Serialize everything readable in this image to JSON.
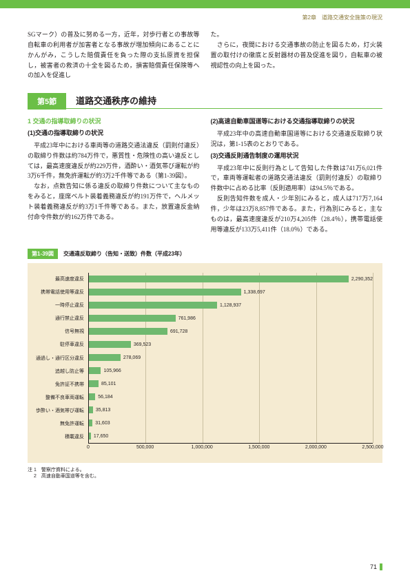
{
  "header": {
    "chapter": "第2章　道路交通安全施策の現況"
  },
  "intro": {
    "left": "SGマーク）の普及に努める一方，近年，対歩行者との事故等自転車の利用者が加害者となる事故が増加傾向にあることにかんがみ，こうした賠償責任を負った際の支払原資を担保し，被害者の救済の十全を図るため，損害賠償責任保険等への加入を促進し",
    "right": "た。\n　さらに，夜間における交通事故の防止を図るため，灯火装置の取付けの徹底と反射器材の普及促進を図り，自転車の被視認性の向上を図った。"
  },
  "section": {
    "badge": "第5節",
    "title": "道路交通秩序の維持"
  },
  "body": {
    "left_h1_green": "1 交通の指導取締りの状況",
    "left_h2a": "(1)交通の指導取締りの状況",
    "left_p1": "　平成23年中における車両等の道路交通法違反（罰則付違反）の取締り件数は約784万件で，悪質性・危険性の高い違反としては，最高速度違反が約229万件，酒酔い・酒気帯び運転が約3万6千件，無免許運転が約3万2千件等である（第1-39図）。\n　なお，点数告知に係る違反の取締り件数について主なものをみると，座席ベルト装着義務違反が約191万件で，ヘルメット装着義務違反が約3万1千件等である。また，放置違反金納付命令件数が約162万件である。",
    "right_h2b": "(2)高速自動車国道等における交通指導取締りの状況",
    "right_p1": "　平成23年中の高速自動車国道等における交通違反取締り状況は，第1-15表のとおりである。",
    "right_h2c": "(3)交通反則通告制度の運用状況",
    "right_p2": "　平成23年中に反則行為として告知した件数は741万6,021件で，車両等運転者の道路交通法違反（罰則付違反）の取締り件数中に占める比率（反則適用率）は94.5％である。\n　反則告知件数を成人・少年別にみると，成人は717万7,164件，少年は23万8,857件である。また，行為別にみると，主なものは，最高速度違反が210万4,205件（28.4％），携帯電話使用等違反が133万5,411件（18.0％）である。"
  },
  "chart": {
    "tab": "第1-39図",
    "title": "交通違反取締り（告知・送致）件数（平成23年）",
    "xmax": 2500000,
    "xticks": [
      0,
      500000,
      1000000,
      1500000,
      2000000,
      2500000
    ],
    "xtick_labels": [
      "0",
      "500,000",
      "1,000,000",
      "1,500,000",
      "2,000,000",
      "2,500,000"
    ],
    "categories": [
      "最高速度違反",
      "携帯電話使用等違反",
      "一時停止違反",
      "通行禁止違反",
      "信号無視",
      "駐停車違反",
      "通過し・通行区分違反",
      "追越し防止等",
      "免許証不携帯",
      "整備不良車両運転",
      "歩酔い・酒気帯び運転",
      "無免許運転",
      "積載違反"
    ],
    "values": [
      2290352,
      1338697,
      1128937,
      761986,
      691728,
      369523,
      278069,
      105966,
      85101,
      56184,
      35813,
      31603,
      17650
    ],
    "value_labels": [
      "2,290,352",
      "1,338,697",
      "1,128,937",
      "761,986",
      "691,728",
      "369,523",
      "278,069",
      "105,966",
      "85,101",
      "56,184",
      "35,813",
      "31,603",
      "17,650"
    ],
    "bar_color": "#6fb96f",
    "bg": "#f5ebd2"
  },
  "notes": {
    "prefix": "注",
    "n1": "1　警察庁資料による。",
    "n2": "2　高速自動車国道等を含む。"
  },
  "page": "71"
}
